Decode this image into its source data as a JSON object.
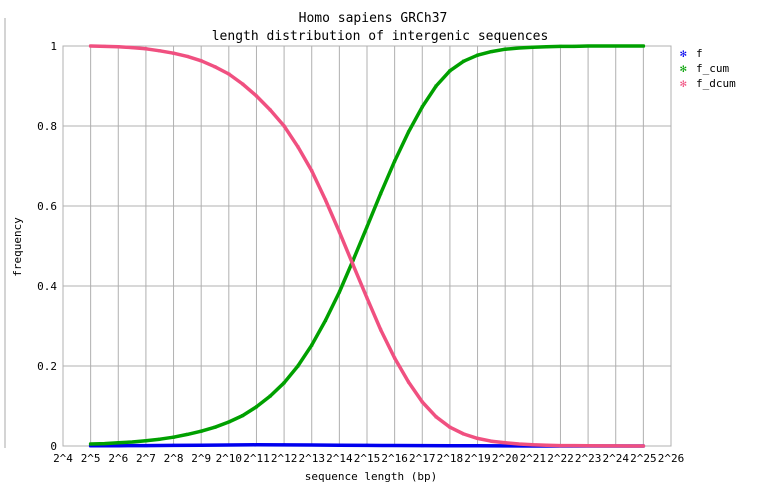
{
  "chart_data": {
    "type": "scatter",
    "title": "Homo sapiens GRCh37",
    "subtitle": "length distribution of intergenic sequences",
    "xlabel": "sequence length (bp)",
    "ylabel": "frequency",
    "x_scale": "log2",
    "xlim": [
      4,
      26
    ],
    "ylim": [
      0,
      1
    ],
    "x_ticks": [
      "2^4",
      "2^5",
      "2^6",
      "2^7",
      "2^8",
      "2^9",
      "2^10",
      "2^11",
      "2^12",
      "2^13",
      "2^14",
      "2^15",
      "2^16",
      "2^17",
      "2^18",
      "2^19",
      "2^20",
      "2^21",
      "2^22",
      "2^23",
      "2^24",
      "2^25",
      "2^26"
    ],
    "y_ticks": [
      "0",
      "0.2",
      "0.4",
      "0.6",
      "0.8",
      "1"
    ],
    "grid": true,
    "legend_position": "top-right",
    "series": [
      {
        "name": "f",
        "color": "#0000ee",
        "x": [
          5,
          6,
          7,
          8,
          9,
          10,
          11,
          12,
          13,
          14,
          15,
          16,
          17,
          18,
          19,
          20,
          21,
          22,
          23,
          24,
          25
        ],
        "y": [
          0.0005,
          0.0008,
          0.001,
          0.0015,
          0.002,
          0.0025,
          0.003,
          0.0028,
          0.0025,
          0.002,
          0.0016,
          0.0012,
          0.0009,
          0.0006,
          0.0004,
          0.0002,
          0.0001,
          5e-05,
          2e-05,
          1e-05,
          0
        ]
      },
      {
        "name": "f_cum",
        "color": "#00a000",
        "x": [
          5,
          5.5,
          6,
          6.5,
          7,
          7.5,
          8,
          8.5,
          9,
          9.5,
          10,
          10.5,
          11,
          11.5,
          12,
          12.5,
          13,
          13.5,
          14,
          14.5,
          15,
          15.5,
          16,
          16.5,
          17,
          17.5,
          18,
          18.5,
          19,
          19.5,
          20,
          20.5,
          21,
          21.5,
          22,
          22.5,
          23,
          23.5,
          24,
          24.5,
          25
        ],
        "y": [
          0.005,
          0.006,
          0.008,
          0.01,
          0.013,
          0.017,
          0.022,
          0.029,
          0.037,
          0.047,
          0.06,
          0.076,
          0.098,
          0.125,
          0.158,
          0.2,
          0.252,
          0.314,
          0.385,
          0.465,
          0.548,
          0.632,
          0.712,
          0.785,
          0.848,
          0.9,
          0.938,
          0.962,
          0.977,
          0.986,
          0.992,
          0.995,
          0.997,
          0.998,
          0.999,
          0.999,
          1.0,
          1.0,
          1.0,
          1.0,
          1.0
        ]
      },
      {
        "name": "f_dcum",
        "color": "#f05080",
        "x": [
          5,
          5.5,
          6,
          6.5,
          7,
          7.5,
          8,
          8.5,
          9,
          9.5,
          10,
          10.5,
          11,
          11.5,
          12,
          12.5,
          13,
          13.5,
          14,
          14.5,
          15,
          15.5,
          16,
          16.5,
          17,
          17.5,
          18,
          18.5,
          19,
          19.5,
          20,
          20.5,
          21,
          21.5,
          22,
          22.5,
          23,
          23.5,
          24,
          24.5,
          25
        ],
        "y": [
          1.0,
          0.999,
          0.998,
          0.996,
          0.993,
          0.988,
          0.982,
          0.974,
          0.963,
          0.948,
          0.93,
          0.905,
          0.875,
          0.84,
          0.8,
          0.748,
          0.688,
          0.615,
          0.535,
          0.452,
          0.37,
          0.29,
          0.22,
          0.16,
          0.11,
          0.073,
          0.047,
          0.03,
          0.019,
          0.012,
          0.008,
          0.005,
          0.003,
          0.002,
          0.001,
          0.001,
          0.0005,
          0.0003,
          0.0002,
          0.0001,
          0.0001
        ]
      }
    ]
  }
}
